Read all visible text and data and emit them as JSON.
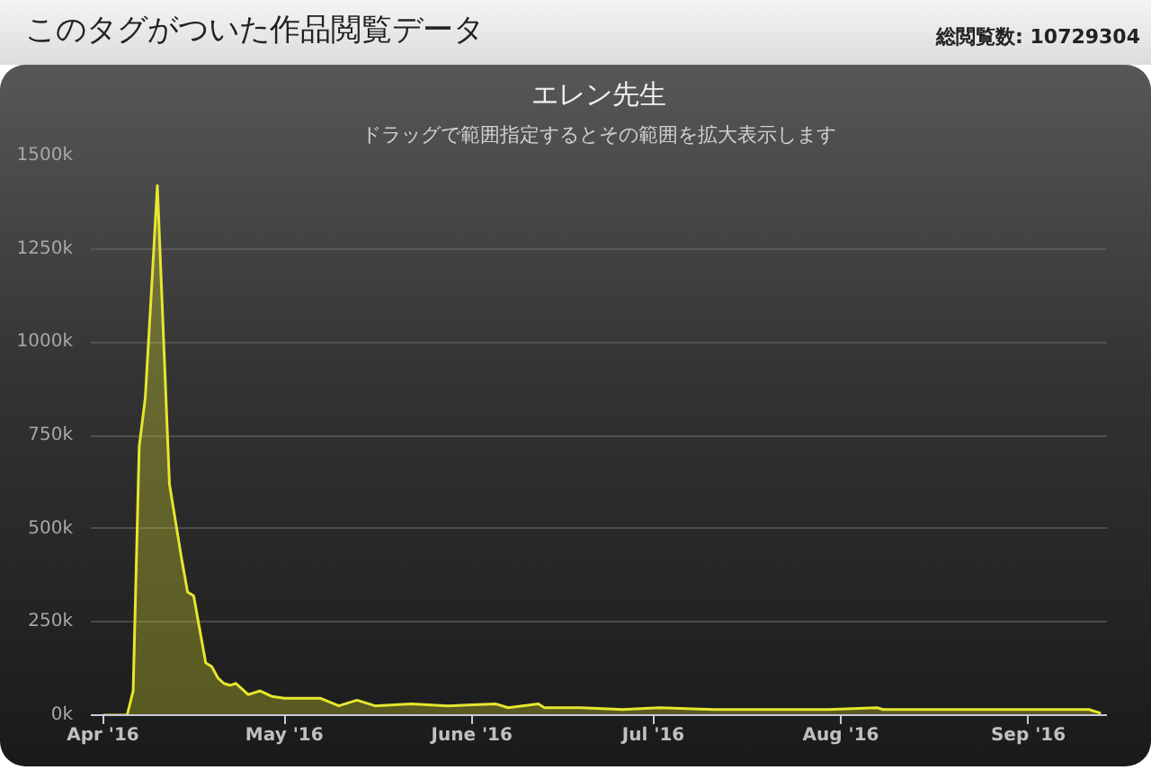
{
  "chart_data": {
    "type": "area",
    "title": "エレン先生",
    "subtitle": "ドラッグで範囲指定するとその範囲を拡大表示します",
    "annotations": [
      "このタグがついた作品閲覧データ",
      "総閲覧数: 10729304"
    ],
    "x": [
      "2016-04-01",
      "2016-04-05",
      "2016-04-06",
      "2016-04-07",
      "2016-04-08",
      "2016-04-09",
      "2016-04-10",
      "2016-04-11",
      "2016-04-12",
      "2016-04-13",
      "2016-04-14",
      "2016-04-15",
      "2016-04-16",
      "2016-04-17",
      "2016-04-18",
      "2016-04-19",
      "2016-04-20",
      "2016-04-21",
      "2016-04-22",
      "2016-04-23",
      "2016-04-24",
      "2016-04-25",
      "2016-04-26",
      "2016-04-27",
      "2016-04-29",
      "2016-05-01",
      "2016-05-03",
      "2016-05-07",
      "2016-05-10",
      "2016-05-13",
      "2016-05-16",
      "2016-05-22",
      "2016-05-28",
      "2016-06-05",
      "2016-06-07",
      "2016-06-12",
      "2016-06-13",
      "2016-06-19",
      "2016-06-26",
      "2016-07-02",
      "2016-07-11",
      "2016-07-20",
      "2016-07-30",
      "2016-08-07",
      "2016-08-08",
      "2016-08-20",
      "2016-09-01",
      "2016-09-11",
      "2016-09-13"
    ],
    "series": [
      {
        "color": "#e6e62e",
        "values": [
          0,
          0,
          65000,
          720000,
          850000,
          1130000,
          1420000,
          1020000,
          620000,
          520000,
          420000,
          330000,
          320000,
          230000,
          140000,
          130000,
          100000,
          85000,
          80000,
          85000,
          70000,
          55000,
          60000,
          65000,
          50000,
          45000,
          45000,
          45000,
          25000,
          40000,
          25000,
          30000,
          25000,
          30000,
          20000,
          30000,
          20000,
          20000,
          15000,
          20000,
          15000,
          15000,
          15000,
          20000,
          15000,
          15000,
          15000,
          15000,
          5000
        ]
      }
    ],
    "xlim": [
      "2016-03-30",
      "2016-09-14"
    ],
    "ylim": [
      0,
      1500000
    ],
    "xticks": [
      {
        "value": "2016-04-01",
        "label": "Apr '16"
      },
      {
        "value": "2016-05-01",
        "label": "May '16"
      },
      {
        "value": "2016-06-01",
        "label": "June '16"
      },
      {
        "value": "2016-07-01",
        "label": "Jul '16"
      },
      {
        "value": "2016-08-01",
        "label": "Aug '16"
      },
      {
        "value": "2016-09-01",
        "label": "Sep '16"
      }
    ],
    "yticks": [
      {
        "value": 0,
        "label": "0k"
      },
      {
        "value": 250000,
        "label": "250k"
      },
      {
        "value": 500000,
        "label": "500k"
      },
      {
        "value": 750000,
        "label": "750k"
      },
      {
        "value": 1000000,
        "label": "1000k"
      },
      {
        "value": 1250000,
        "label": "1250k"
      },
      {
        "value": 1500000,
        "label": "1500k"
      }
    ],
    "grid": "y"
  }
}
